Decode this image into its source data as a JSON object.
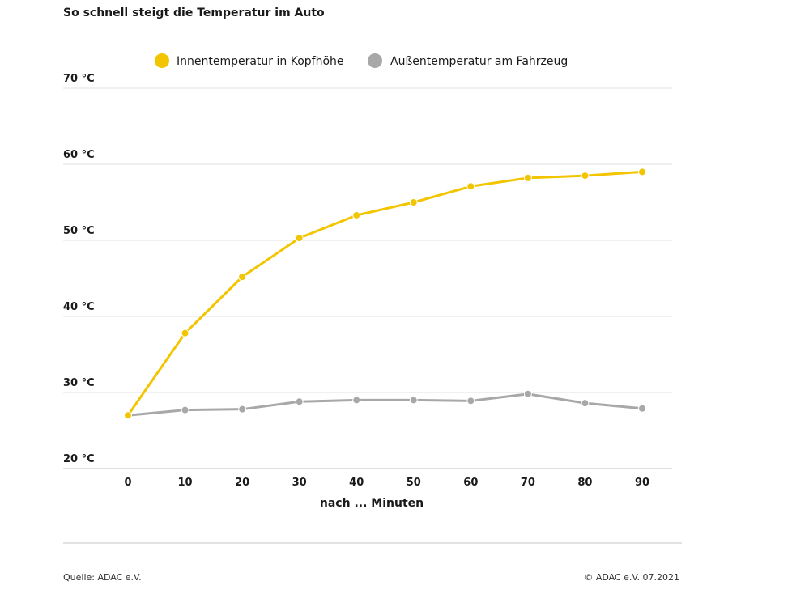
{
  "chart_data": {
    "type": "line",
    "title": "So schnell steigt die Temperatur im Auto",
    "xlabel": "nach ... Minuten",
    "ylabel": "",
    "x": [
      0,
      10,
      20,
      30,
      40,
      50,
      60,
      70,
      80,
      90
    ],
    "ylim": [
      20,
      70
    ],
    "yticks": [
      20,
      30,
      40,
      50,
      60,
      70
    ],
    "ytick_labels": [
      "20 °C",
      "30 °C",
      "40 °C",
      "50 °C",
      "60 °C",
      "70 °C"
    ],
    "grid": true,
    "legend_position": "top-center",
    "series": [
      {
        "name": "Innentemperatur in Kopfhöhe",
        "color": "#f2c500",
        "values": [
          27.0,
          37.8,
          45.2,
          50.3,
          53.3,
          55.0,
          57.1,
          58.2,
          58.5,
          59.0
        ]
      },
      {
        "name": "Außentemperatur am Fahrzeug",
        "color": "#a8a8a8",
        "values": [
          27.0,
          27.7,
          27.8,
          28.8,
          29.0,
          29.0,
          28.9,
          29.8,
          28.6,
          27.9
        ]
      }
    ]
  },
  "footer": {
    "source": "Quelle: ADAC e.V.",
    "copyright": "© ADAC e.V. 07.2021"
  }
}
